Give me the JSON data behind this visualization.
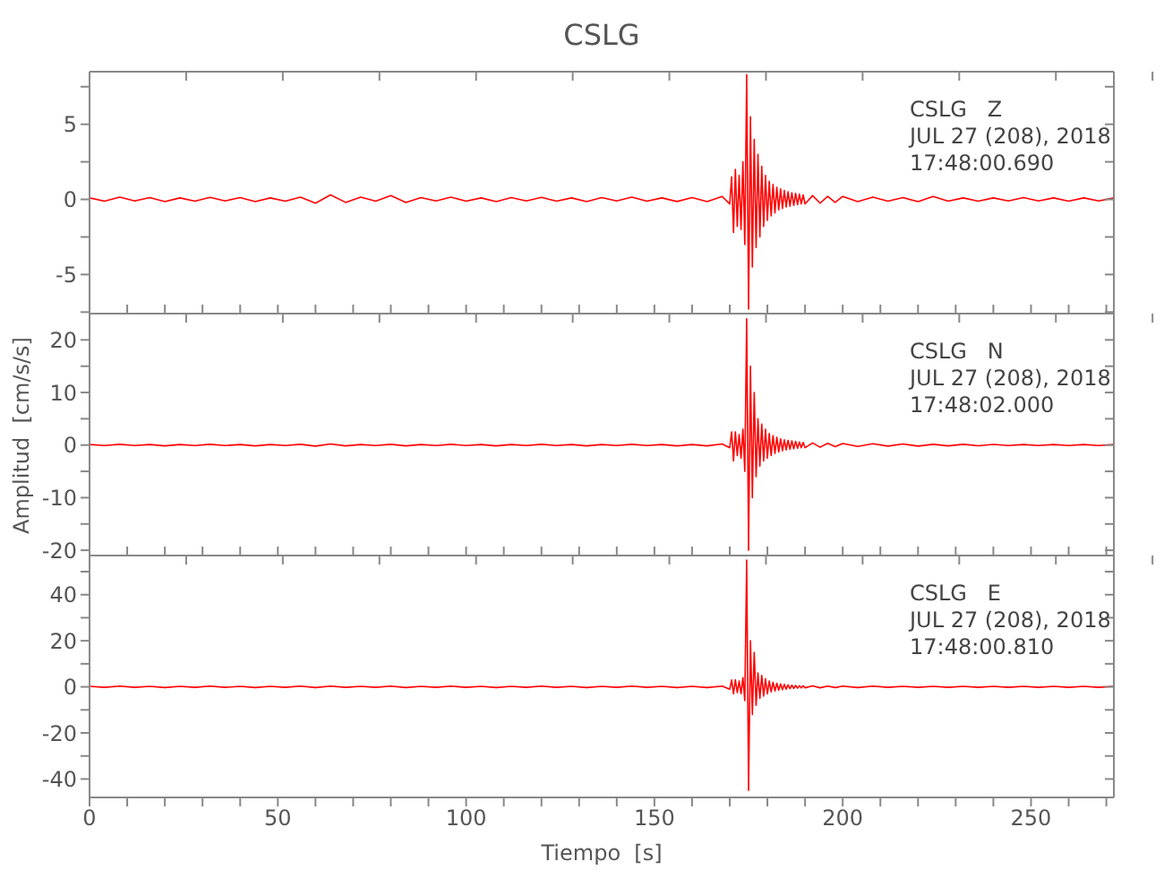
{
  "chart_data": [
    {
      "type": "line",
      "title": "CSLG",
      "color": "#ff0000",
      "tick_labels": "y",
      "annotations": [
        "CSLG   Z",
        "JUL 27 (208), 2018",
        "17:48:00.690"
      ],
      "xlim": [
        0,
        272
      ],
      "ylim": [
        -7.6,
        8.5
      ],
      "xticks": [
        0,
        {
          "value": 10,
          "label": null
        },
        {
          "value": 20,
          "label": null
        },
        {
          "value": 30,
          "label": null
        },
        {
          "value": 40,
          "label": null
        },
        50,
        {
          "value": 60,
          "label": null
        },
        {
          "value": 70,
          "label": null
        },
        {
          "value": 80,
          "label": null
        },
        {
          "value": 90,
          "label": null
        },
        100,
        {
          "value": 110,
          "label": null
        },
        {
          "value": 120,
          "label": null
        },
        {
          "value": 130,
          "label": null
        },
        {
          "value": 140,
          "label": null
        },
        150,
        {
          "value": 160,
          "label": null
        },
        {
          "value": 170,
          "label": null
        },
        {
          "value": 180,
          "label": null
        },
        {
          "value": 190,
          "label": null
        },
        200,
        {
          "value": 210,
          "label": null
        },
        {
          "value": 220,
          "label": null
        },
        {
          "value": 230,
          "label": null
        },
        {
          "value": 240,
          "label": null
        },
        250,
        {
          "value": 260,
          "label": null
        },
        {
          "value": 270,
          "label": null
        }
      ],
      "yticks": [
        {
          "value": -7.5,
          "label": null
        },
        -5,
        {
          "value": -2.5,
          "label": null
        },
        0,
        {
          "value": 2.5,
          "label": null
        },
        5,
        {
          "value": 7.5,
          "label": null
        }
      ],
      "x": [
        0,
        4,
        8,
        12,
        16,
        20,
        24,
        28,
        32,
        36,
        40,
        44,
        48,
        52,
        56,
        60,
        64,
        68,
        72,
        76,
        80,
        84,
        88,
        92,
        96,
        100,
        104,
        108,
        112,
        116,
        120,
        124,
        128,
        132,
        136,
        140,
        144,
        148,
        152,
        156,
        160,
        164,
        168,
        170,
        170.5,
        171,
        171.5,
        172,
        172.5,
        173,
        173.5,
        174,
        174.5,
        175,
        175.5,
        176,
        176.5,
        177,
        177.5,
        178,
        178.5,
        179,
        179.5,
        180,
        180.5,
        181,
        181.5,
        182,
        182.5,
        183,
        183.5,
        184,
        184.5,
        185,
        185.5,
        186,
        186.5,
        187,
        187.5,
        188,
        188.5,
        189,
        189.5,
        190,
        192,
        194,
        196,
        198,
        200,
        204,
        208,
        212,
        216,
        220,
        224,
        228,
        232,
        236,
        240,
        244,
        248,
        252,
        256,
        260,
        264,
        268,
        272
      ],
      "values": [
        0.1,
        -0.12,
        0.15,
        -0.1,
        0.12,
        -0.15,
        0.1,
        -0.12,
        0.14,
        -0.1,
        0.12,
        -0.15,
        0.1,
        -0.12,
        0.15,
        -0.25,
        0.3,
        -0.2,
        0.15,
        -0.12,
        0.25,
        -0.2,
        0.12,
        -0.1,
        0.15,
        -0.12,
        0.1,
        -0.15,
        0.12,
        -0.1,
        0.14,
        -0.12,
        0.1,
        -0.15,
        0.12,
        -0.1,
        0.15,
        -0.12,
        0.1,
        -0.14,
        0.12,
        -0.15,
        0.2,
        -0.3,
        1.5,
        -2.2,
        2,
        -1.8,
        1.6,
        -2,
        2.5,
        -3,
        8.3,
        -7.3,
        5.5,
        -4.5,
        4,
        -3.2,
        3,
        -2.5,
        2.2,
        -1.8,
        1.6,
        -1.4,
        1.2,
        -1.1,
        1,
        -0.9,
        0.8,
        -0.7,
        0.7,
        -0.6,
        0.6,
        -0.5,
        0.5,
        -0.45,
        0.45,
        -0.4,
        0.4,
        -0.35,
        0.35,
        -0.3,
        0.3,
        -0.3,
        0.25,
        -0.25,
        0.2,
        -0.2,
        0.2,
        -0.15,
        0.15,
        -0.12,
        0.12,
        -0.15,
        0.2,
        -0.12,
        0.1,
        -0.12,
        0.1,
        -0.1,
        0.12,
        -0.1,
        0.1,
        -0.12,
        0.1,
        -0.1,
        0.1
      ]
    },
    {
      "type": "line",
      "ylabel": "Amplitud  [cm/s/s]",
      "color": "#ff0000",
      "tick_labels": "y",
      "annotations": [
        "CSLG   N",
        "JUL 27 (208), 2018",
        "17:48:02.000"
      ],
      "xlim": [
        0,
        272
      ],
      "ylim": [
        -21,
        25
      ],
      "xticks": [
        0,
        {
          "value": 10,
          "label": null
        },
        {
          "value": 20,
          "label": null
        },
        {
          "value": 30,
          "label": null
        },
        {
          "value": 40,
          "label": null
        },
        50,
        {
          "value": 60,
          "label": null
        },
        {
          "value": 70,
          "label": null
        },
        {
          "value": 80,
          "label": null
        },
        {
          "value": 90,
          "label": null
        },
        100,
        {
          "value": 110,
          "label": null
        },
        {
          "value": 120,
          "label": null
        },
        {
          "value": 130,
          "label": null
        },
        {
          "value": 140,
          "label": null
        },
        150,
        {
          "value": 160,
          "label": null
        },
        {
          "value": 170,
          "label": null
        },
        {
          "value": 180,
          "label": null
        },
        {
          "value": 190,
          "label": null
        },
        200,
        {
          "value": 210,
          "label": null
        },
        {
          "value": 220,
          "label": null
        },
        {
          "value": 230,
          "label": null
        },
        {
          "value": 240,
          "label": null
        },
        250,
        {
          "value": 260,
          "label": null
        },
        {
          "value": 270,
          "label": null
        }
      ],
      "yticks": [
        -20,
        {
          "value": -15,
          "label": null
        },
        -10,
        {
          "value": -5,
          "label": null
        },
        0,
        {
          "value": 5,
          "label": null
        },
        10,
        {
          "value": 15,
          "label": null
        },
        20
      ],
      "x": [
        0,
        4,
        8,
        12,
        16,
        20,
        24,
        28,
        32,
        36,
        40,
        44,
        48,
        52,
        56,
        60,
        64,
        68,
        72,
        76,
        80,
        84,
        88,
        92,
        96,
        100,
        104,
        108,
        112,
        116,
        120,
        124,
        128,
        132,
        136,
        140,
        144,
        148,
        152,
        156,
        160,
        164,
        168,
        170,
        170.5,
        171,
        171.5,
        172,
        172.5,
        173,
        173.5,
        174,
        174.5,
        175,
        175.5,
        176,
        176.5,
        177,
        177.5,
        178,
        178.5,
        179,
        179.5,
        180,
        180.5,
        181,
        181.5,
        182,
        182.5,
        183,
        183.5,
        184,
        184.5,
        185,
        185.5,
        186,
        186.5,
        187,
        187.5,
        188,
        188.5,
        189,
        189.5,
        190,
        192,
        194,
        196,
        198,
        200,
        204,
        208,
        212,
        216,
        220,
        224,
        228,
        232,
        236,
        240,
        244,
        248,
        252,
        256,
        260,
        264,
        268,
        272
      ],
      "values": [
        0.1,
        -0.1,
        0.15,
        -0.1,
        0.1,
        -0.15,
        0.1,
        -0.1,
        0.15,
        -0.1,
        0.1,
        -0.15,
        0.1,
        -0.1,
        0.15,
        -0.2,
        0.2,
        -0.15,
        0.1,
        -0.1,
        0.15,
        -0.15,
        0.1,
        -0.1,
        0.15,
        -0.1,
        0.1,
        -0.15,
        0.1,
        -0.1,
        0.15,
        -0.1,
        0.1,
        -0.15,
        0.1,
        -0.1,
        0.15,
        -0.1,
        0.1,
        -0.15,
        0.1,
        -0.15,
        0.2,
        -0.5,
        2.5,
        -3,
        2.5,
        -2,
        2,
        -2.5,
        3,
        -5,
        24,
        -20,
        15,
        -10,
        10,
        -6,
        5,
        -4,
        4,
        -3,
        3,
        -2.5,
        2.2,
        -2,
        1.8,
        -1.6,
        1.5,
        -1.3,
        1.2,
        -1.1,
        1,
        -0.9,
        0.9,
        -0.8,
        0.8,
        -0.7,
        0.7,
        -0.6,
        0.6,
        -0.5,
        0.5,
        -0.5,
        0.4,
        -0.4,
        0.35,
        -0.3,
        0.3,
        -0.25,
        0.25,
        -0.2,
        0.2,
        -0.2,
        0.15,
        -0.15,
        0.15,
        -0.12,
        0.12,
        -0.1,
        0.1,
        -0.1,
        0.1,
        -0.1,
        0.1,
        -0.1,
        0.1
      ]
    },
    {
      "type": "line",
      "xlabel": "Tiempo  [s]",
      "color": "#ff0000",
      "annotations": [
        "CSLG   E",
        "JUL 27 (208), 2018",
        "17:48:00.810"
      ],
      "xlim": [
        0,
        272
      ],
      "ylim": [
        -48,
        57
      ],
      "xticks": [
        0,
        {
          "value": 10,
          "label": null
        },
        {
          "value": 20,
          "label": null
        },
        {
          "value": 30,
          "label": null
        },
        {
          "value": 40,
          "label": null
        },
        50,
        {
          "value": 60,
          "label": null
        },
        {
          "value": 70,
          "label": null
        },
        {
          "value": 80,
          "label": null
        },
        {
          "value": 90,
          "label": null
        },
        100,
        {
          "value": 110,
          "label": null
        },
        {
          "value": 120,
          "label": null
        },
        {
          "value": 130,
          "label": null
        },
        {
          "value": 140,
          "label": null
        },
        150,
        {
          "value": 160,
          "label": null
        },
        {
          "value": 170,
          "label": null
        },
        {
          "value": 180,
          "label": null
        },
        {
          "value": 190,
          "label": null
        },
        200,
        {
          "value": 210,
          "label": null
        },
        {
          "value": 220,
          "label": null
        },
        {
          "value": 230,
          "label": null
        },
        {
          "value": 240,
          "label": null
        },
        250,
        {
          "value": 260,
          "label": null
        },
        {
          "value": 270,
          "label": null
        }
      ],
      "yticks": [
        -40,
        {
          "value": -30,
          "label": null
        },
        -20,
        {
          "value": -10,
          "label": null
        },
        0,
        {
          "value": 10,
          "label": null
        },
        20,
        {
          "value": 30,
          "label": null
        },
        40,
        {
          "value": 50,
          "label": null
        }
      ],
      "x": [
        0,
        4,
        8,
        12,
        16,
        20,
        24,
        28,
        32,
        36,
        40,
        44,
        48,
        52,
        56,
        60,
        64,
        68,
        72,
        76,
        80,
        84,
        88,
        92,
        96,
        100,
        104,
        108,
        112,
        116,
        120,
        124,
        128,
        132,
        136,
        140,
        144,
        148,
        152,
        156,
        160,
        164,
        168,
        170,
        170.5,
        171,
        171.5,
        172,
        172.5,
        173,
        173.5,
        174,
        174.5,
        175,
        175.5,
        176,
        176.5,
        177,
        177.5,
        178,
        178.5,
        179,
        179.5,
        180,
        180.5,
        181,
        181.5,
        182,
        182.5,
        183,
        183.5,
        184,
        184.5,
        185,
        185.5,
        186,
        186.5,
        187,
        187.5,
        188,
        188.5,
        189,
        189.5,
        190,
        192,
        194,
        196,
        198,
        200,
        204,
        208,
        212,
        216,
        220,
        224,
        228,
        232,
        236,
        240,
        244,
        248,
        252,
        256,
        260,
        264,
        268,
        272
      ],
      "values": [
        0.2,
        -0.2,
        0.3,
        -0.2,
        0.2,
        -0.3,
        0.2,
        -0.2,
        0.3,
        -0.2,
        0.2,
        -0.3,
        0.2,
        -0.2,
        0.3,
        -0.3,
        0.3,
        -0.2,
        0.2,
        -0.2,
        0.3,
        -0.3,
        0.2,
        -0.2,
        0.3,
        -0.2,
        0.2,
        -0.3,
        0.2,
        -0.2,
        0.3,
        -0.2,
        0.2,
        -0.3,
        0.2,
        -0.2,
        0.3,
        -0.2,
        0.2,
        -0.3,
        0.2,
        -0.3,
        0.3,
        -1,
        3,
        -3,
        3,
        -2.5,
        2.5,
        -3,
        4,
        -6,
        55,
        -45,
        20,
        -12,
        15,
        -8,
        6,
        -5,
        5,
        -4,
        3.5,
        -3,
        2.5,
        -2.2,
        2,
        -1.8,
        1.6,
        -1.4,
        1.3,
        -1.2,
        1.1,
        -1,
        0.9,
        -0.8,
        0.8,
        -0.7,
        0.6,
        -0.6,
        0.5,
        -0.5,
        0.5,
        -0.4,
        0.4,
        -0.4,
        0.3,
        -0.3,
        0.3,
        -0.3,
        0.3,
        -0.2,
        0.2,
        -0.2,
        0.2,
        -0.2,
        0.2,
        -0.2,
        0.2,
        -0.2,
        0.2,
        -0.2,
        0.2,
        -0.2,
        0.2,
        -0.2,
        0.2
      ]
    }
  ]
}
